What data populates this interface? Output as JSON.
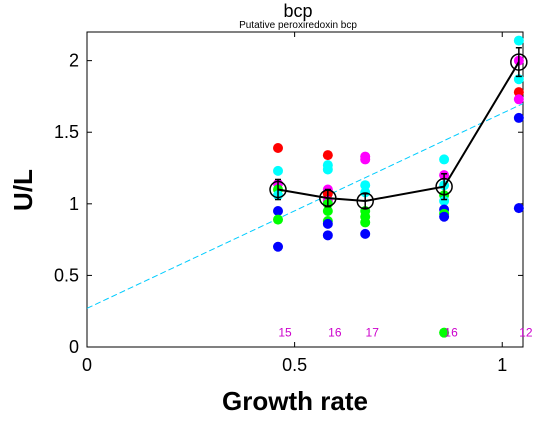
{
  "chart_data": {
    "type": "scatter",
    "title": "bcp",
    "subtitle": "Putative peroxiredoxin bcp",
    "xlabel": "Growth rate",
    "ylabel": "U/L",
    "xlim": [
      0,
      1.05
    ],
    "ylim": [
      0,
      2.2
    ],
    "x_ticks": [
      0,
      0.5,
      1
    ],
    "x_tick_labels": [
      "0",
      "0.5",
      "1"
    ],
    "y_ticks": [
      0,
      0.5,
      1,
      1.5,
      2
    ],
    "y_tick_labels": [
      "0",
      "0.5",
      "1",
      "1.5",
      "2"
    ],
    "grid": false,
    "colors": {
      "red": "#ff0000",
      "magenta": "#ff00ff",
      "cyan": "#00ffff",
      "green": "#00ff00",
      "blue": "#0000ff",
      "black": "#000000",
      "fit_line": "#00ccff",
      "count_text": "#cc00cc"
    },
    "replicates": [
      {
        "x": 0.46,
        "points": [
          {
            "y": 1.39,
            "color": "red"
          },
          {
            "y": 1.23,
            "color": "cyan"
          },
          {
            "y": 1.14,
            "color": "magenta"
          },
          {
            "y": 1.1,
            "color": "green"
          },
          {
            "y": 1.06,
            "color": "cyan"
          },
          {
            "y": 0.95,
            "color": "blue"
          },
          {
            "y": 0.89,
            "color": "green"
          },
          {
            "y": 0.7,
            "color": "blue"
          }
        ]
      },
      {
        "x": 0.58,
        "points": [
          {
            "y": 1.34,
            "color": "red"
          },
          {
            "y": 1.27,
            "color": "cyan"
          },
          {
            "y": 1.24,
            "color": "cyan"
          },
          {
            "y": 1.1,
            "color": "magenta"
          },
          {
            "y": 1.07,
            "color": "red"
          },
          {
            "y": 1.02,
            "color": "magenta"
          },
          {
            "y": 1.0,
            "color": "green"
          },
          {
            "y": 0.95,
            "color": "green"
          },
          {
            "y": 0.88,
            "color": "green"
          },
          {
            "y": 0.86,
            "color": "blue"
          },
          {
            "y": 0.78,
            "color": "blue"
          }
        ]
      },
      {
        "x": 0.67,
        "points": [
          {
            "y": 1.33,
            "color": "magenta"
          },
          {
            "y": 1.31,
            "color": "magenta"
          },
          {
            "y": 1.13,
            "color": "cyan"
          },
          {
            "y": 1.08,
            "color": "cyan"
          },
          {
            "y": 0.95,
            "color": "green"
          },
          {
            "y": 0.91,
            "color": "green"
          },
          {
            "y": 0.87,
            "color": "green"
          },
          {
            "y": 0.79,
            "color": "blue"
          }
        ]
      },
      {
        "x": 0.86,
        "points": [
          {
            "y": 1.31,
            "color": "cyan"
          },
          {
            "y": 1.2,
            "color": "magenta"
          },
          {
            "y": 1.13,
            "color": "cyan"
          },
          {
            "y": 1.06,
            "color": "green"
          },
          {
            "y": 1.02,
            "color": "cyan"
          },
          {
            "y": 0.96,
            "color": "blue"
          },
          {
            "y": 0.93,
            "color": "green"
          },
          {
            "y": 0.91,
            "color": "blue"
          },
          {
            "y": 0.1,
            "color": "green"
          }
        ]
      },
      {
        "x": 1.04,
        "points": [
          {
            "y": 2.14,
            "color": "cyan"
          },
          {
            "y": 2.0,
            "color": "magenta"
          },
          {
            "y": 1.87,
            "color": "cyan"
          },
          {
            "y": 1.78,
            "color": "red"
          },
          {
            "y": 1.73,
            "color": "magenta"
          },
          {
            "y": 1.6,
            "color": "blue"
          },
          {
            "y": 0.97,
            "color": "blue"
          }
        ]
      }
    ],
    "mean_series": {
      "x": [
        0.46,
        0.58,
        0.67,
        0.86,
        1.04
      ],
      "y": [
        1.1,
        1.04,
        1.02,
        1.12,
        1.99
      ],
      "error": [
        0.07,
        0.06,
        0.05,
        0.09,
        0.1
      ]
    },
    "fit_line": {
      "x": [
        0,
        1.05
      ],
      "y": [
        0.27,
        1.7
      ]
    },
    "counts": [
      {
        "x": 0.46,
        "label": "15"
      },
      {
        "x": 0.58,
        "label": "16"
      },
      {
        "x": 0.67,
        "label": "17"
      },
      {
        "x": 0.86,
        "label": "16"
      },
      {
        "x": 1.04,
        "label": "12"
      }
    ],
    "count_label_y": 0.1
  }
}
